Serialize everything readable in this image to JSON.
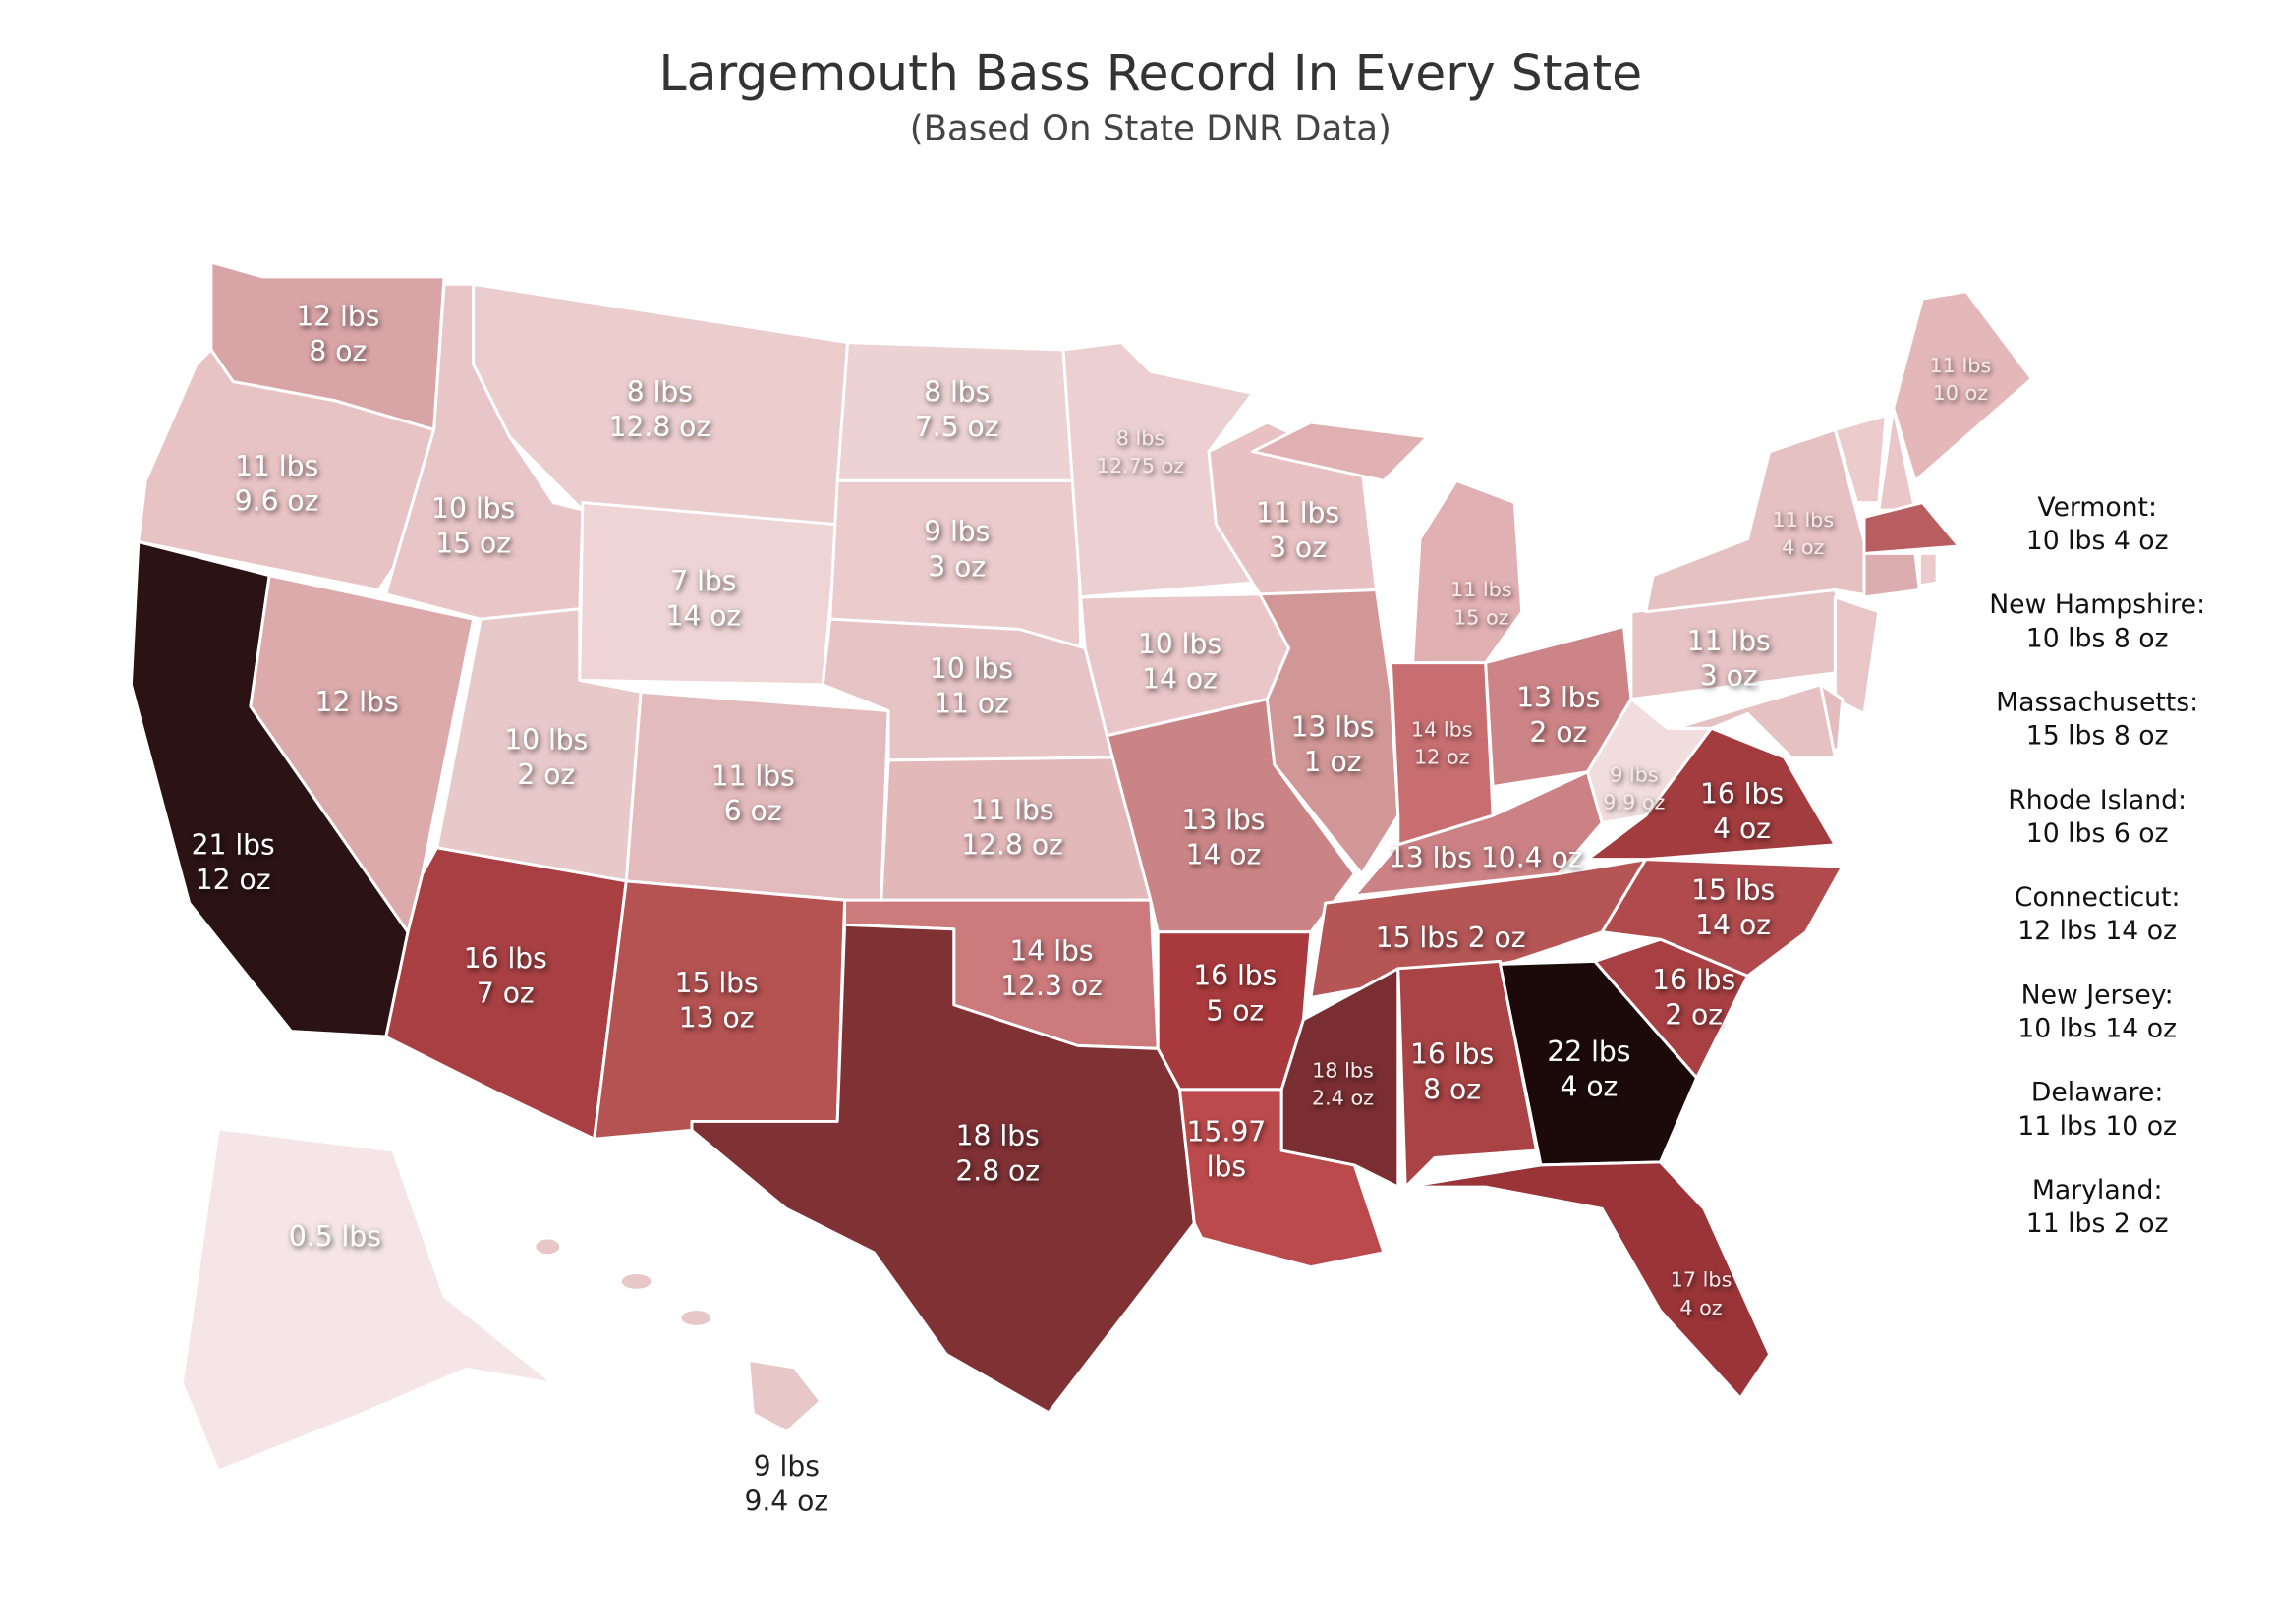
{
  "title": "Largemouth Bass Record In Every State",
  "subtitle": "(Based On State DNR Data)",
  "map_labels": [
    {
      "lines": [
        "12 lbs",
        "8 oz"
      ]
    },
    {
      "lines": [
        "11 lbs",
        "9.6 oz"
      ]
    },
    {
      "lines": [
        "21 lbs",
        "12 oz"
      ]
    },
    {
      "lines": [
        "12 lbs"
      ]
    },
    {
      "lines": [
        "10 lbs",
        "15 oz"
      ]
    },
    {
      "lines": [
        "8 lbs",
        "12.8 oz"
      ]
    },
    {
      "lines": [
        "7 lbs",
        "14 oz"
      ]
    },
    {
      "lines": [
        "10 lbs",
        "2 oz"
      ]
    },
    {
      "lines": [
        "11 lbs",
        "6 oz"
      ]
    },
    {
      "lines": [
        "16 lbs",
        "7 oz"
      ]
    },
    {
      "lines": [
        "15 lbs",
        "13 oz"
      ]
    },
    {
      "lines": [
        "8 lbs",
        "7.5 oz"
      ]
    },
    {
      "lines": [
        "9 lbs",
        "3 oz"
      ]
    },
    {
      "lines": [
        "10 lbs",
        "11 oz"
      ]
    },
    {
      "lines": [
        "11 lbs",
        "12.8 oz"
      ]
    },
    {
      "lines": [
        "14 lbs",
        "12.3 oz"
      ]
    },
    {
      "lines": [
        "18 lbs",
        "2.8 oz"
      ]
    },
    {
      "lines": [
        "8 lbs",
        "12.75 oz"
      ]
    },
    {
      "lines": [
        "10 lbs",
        "14 oz"
      ]
    },
    {
      "lines": [
        "13 lbs",
        "14 oz"
      ]
    },
    {
      "lines": [
        "16 lbs",
        "5 oz"
      ]
    },
    {
      "lines": [
        "15.97",
        "lbs"
      ]
    },
    {
      "lines": [
        "11 lbs",
        "3 oz"
      ]
    },
    {
      "lines": [
        "13 lbs",
        "1 oz"
      ]
    },
    {
      "lines": [
        "11 lbs",
        "15 oz"
      ]
    },
    {
      "lines": [
        "14 lbs",
        "12 oz"
      ]
    },
    {
      "lines": [
        "13 lbs",
        "2 oz"
      ]
    },
    {
      "lines": [
        "13 lbs 10.4 oz"
      ]
    },
    {
      "lines": [
        "15 lbs 2 oz"
      ]
    },
    {
      "lines": [
        "18 lbs",
        "2.4 oz"
      ]
    },
    {
      "lines": [
        "16 lbs",
        "8 oz"
      ]
    },
    {
      "lines": [
        "22 lbs",
        "4 oz"
      ]
    },
    {
      "lines": [
        "17 lbs",
        "4 oz"
      ]
    },
    {
      "lines": [
        "16 lbs",
        "2 oz"
      ]
    },
    {
      "lines": [
        "15 lbs",
        "14 oz"
      ]
    },
    {
      "lines": [
        "16 lbs",
        "4 oz"
      ]
    },
    {
      "lines": [
        "9 lbs",
        "9.9 oz"
      ]
    },
    {
      "lines": [
        "11 lbs",
        "3 oz"
      ]
    },
    {
      "lines": [
        "11 lbs",
        "4 oz"
      ]
    },
    {
      "lines": [
        "11 lbs",
        "10 oz"
      ]
    },
    {
      "lines": [
        "0.5 lbs"
      ]
    },
    {
      "lines": [
        "9 lbs",
        "9.4 oz"
      ]
    }
  ],
  "side_notes": [
    {
      "name": "Vermont:",
      "value": "10 lbs 4 oz"
    },
    {
      "name": "New Hampshire:",
      "value": "10 lbs 8 oz"
    },
    {
      "name": "Massachusetts:",
      "value": "15 lbs 8 oz"
    },
    {
      "name": "Rhode Island:",
      "value": "10 lbs 6 oz"
    },
    {
      "name": "Connecticut:",
      "value": "12 lbs 14 oz"
    },
    {
      "name": "New Jersey:",
      "value": "10 lbs 14 oz"
    },
    {
      "name": "Delaware:",
      "value": "11 lbs 10 oz"
    },
    {
      "name": "Maryland:",
      "value": "11 lbs 2 oz"
    }
  ]
}
